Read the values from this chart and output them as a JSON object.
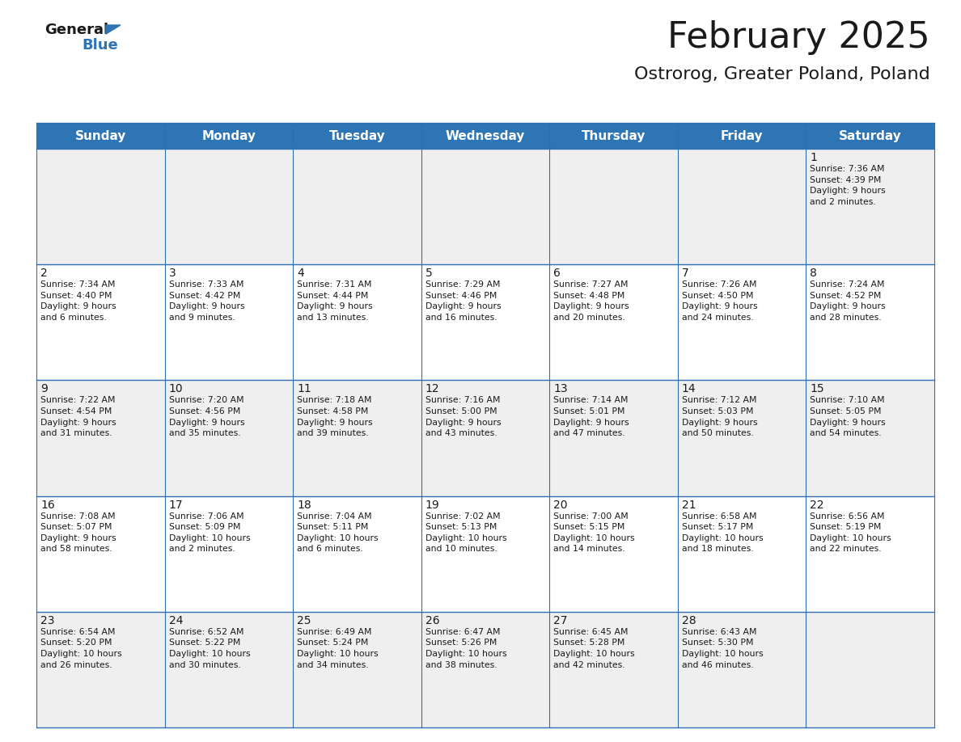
{
  "title": "February 2025",
  "subtitle": "Ostrorog, Greater Poland, Poland",
  "header_bg_color": "#2E75B6",
  "header_text_color": "#FFFFFF",
  "cell_bg_even": "#EFEFEF",
  "cell_bg_odd": "#FFFFFF",
  "border_color": "#2E6FAF",
  "day_headers": [
    "Sunday",
    "Monday",
    "Tuesday",
    "Wednesday",
    "Thursday",
    "Friday",
    "Saturday"
  ],
  "weeks": [
    [
      {
        "day": null,
        "text": ""
      },
      {
        "day": null,
        "text": ""
      },
      {
        "day": null,
        "text": ""
      },
      {
        "day": null,
        "text": ""
      },
      {
        "day": null,
        "text": ""
      },
      {
        "day": null,
        "text": ""
      },
      {
        "day": 1,
        "text": "Sunrise: 7:36 AM\nSunset: 4:39 PM\nDaylight: 9 hours\nand 2 minutes."
      }
    ],
    [
      {
        "day": 2,
        "text": "Sunrise: 7:34 AM\nSunset: 4:40 PM\nDaylight: 9 hours\nand 6 minutes."
      },
      {
        "day": 3,
        "text": "Sunrise: 7:33 AM\nSunset: 4:42 PM\nDaylight: 9 hours\nand 9 minutes."
      },
      {
        "day": 4,
        "text": "Sunrise: 7:31 AM\nSunset: 4:44 PM\nDaylight: 9 hours\nand 13 minutes."
      },
      {
        "day": 5,
        "text": "Sunrise: 7:29 AM\nSunset: 4:46 PM\nDaylight: 9 hours\nand 16 minutes."
      },
      {
        "day": 6,
        "text": "Sunrise: 7:27 AM\nSunset: 4:48 PM\nDaylight: 9 hours\nand 20 minutes."
      },
      {
        "day": 7,
        "text": "Sunrise: 7:26 AM\nSunset: 4:50 PM\nDaylight: 9 hours\nand 24 minutes."
      },
      {
        "day": 8,
        "text": "Sunrise: 7:24 AM\nSunset: 4:52 PM\nDaylight: 9 hours\nand 28 minutes."
      }
    ],
    [
      {
        "day": 9,
        "text": "Sunrise: 7:22 AM\nSunset: 4:54 PM\nDaylight: 9 hours\nand 31 minutes."
      },
      {
        "day": 10,
        "text": "Sunrise: 7:20 AM\nSunset: 4:56 PM\nDaylight: 9 hours\nand 35 minutes."
      },
      {
        "day": 11,
        "text": "Sunrise: 7:18 AM\nSunset: 4:58 PM\nDaylight: 9 hours\nand 39 minutes."
      },
      {
        "day": 12,
        "text": "Sunrise: 7:16 AM\nSunset: 5:00 PM\nDaylight: 9 hours\nand 43 minutes."
      },
      {
        "day": 13,
        "text": "Sunrise: 7:14 AM\nSunset: 5:01 PM\nDaylight: 9 hours\nand 47 minutes."
      },
      {
        "day": 14,
        "text": "Sunrise: 7:12 AM\nSunset: 5:03 PM\nDaylight: 9 hours\nand 50 minutes."
      },
      {
        "day": 15,
        "text": "Sunrise: 7:10 AM\nSunset: 5:05 PM\nDaylight: 9 hours\nand 54 minutes."
      }
    ],
    [
      {
        "day": 16,
        "text": "Sunrise: 7:08 AM\nSunset: 5:07 PM\nDaylight: 9 hours\nand 58 minutes."
      },
      {
        "day": 17,
        "text": "Sunrise: 7:06 AM\nSunset: 5:09 PM\nDaylight: 10 hours\nand 2 minutes."
      },
      {
        "day": 18,
        "text": "Sunrise: 7:04 AM\nSunset: 5:11 PM\nDaylight: 10 hours\nand 6 minutes."
      },
      {
        "day": 19,
        "text": "Sunrise: 7:02 AM\nSunset: 5:13 PM\nDaylight: 10 hours\nand 10 minutes."
      },
      {
        "day": 20,
        "text": "Sunrise: 7:00 AM\nSunset: 5:15 PM\nDaylight: 10 hours\nand 14 minutes."
      },
      {
        "day": 21,
        "text": "Sunrise: 6:58 AM\nSunset: 5:17 PM\nDaylight: 10 hours\nand 18 minutes."
      },
      {
        "day": 22,
        "text": "Sunrise: 6:56 AM\nSunset: 5:19 PM\nDaylight: 10 hours\nand 22 minutes."
      }
    ],
    [
      {
        "day": 23,
        "text": "Sunrise: 6:54 AM\nSunset: 5:20 PM\nDaylight: 10 hours\nand 26 minutes."
      },
      {
        "day": 24,
        "text": "Sunrise: 6:52 AM\nSunset: 5:22 PM\nDaylight: 10 hours\nand 30 minutes."
      },
      {
        "day": 25,
        "text": "Sunrise: 6:49 AM\nSunset: 5:24 PM\nDaylight: 10 hours\nand 34 minutes."
      },
      {
        "day": 26,
        "text": "Sunrise: 6:47 AM\nSunset: 5:26 PM\nDaylight: 10 hours\nand 38 minutes."
      },
      {
        "day": 27,
        "text": "Sunrise: 6:45 AM\nSunset: 5:28 PM\nDaylight: 10 hours\nand 42 minutes."
      },
      {
        "day": 28,
        "text": "Sunrise: 6:43 AM\nSunset: 5:30 PM\nDaylight: 10 hours\nand 46 minutes."
      },
      {
        "day": null,
        "text": ""
      }
    ]
  ],
  "logo_general_color": "#1a1a1a",
  "logo_blue_color": "#2E75B6",
  "title_fontsize": 32,
  "subtitle_fontsize": 16,
  "header_fontsize": 11,
  "day_num_fontsize": 10,
  "cell_text_fontsize": 7.8
}
